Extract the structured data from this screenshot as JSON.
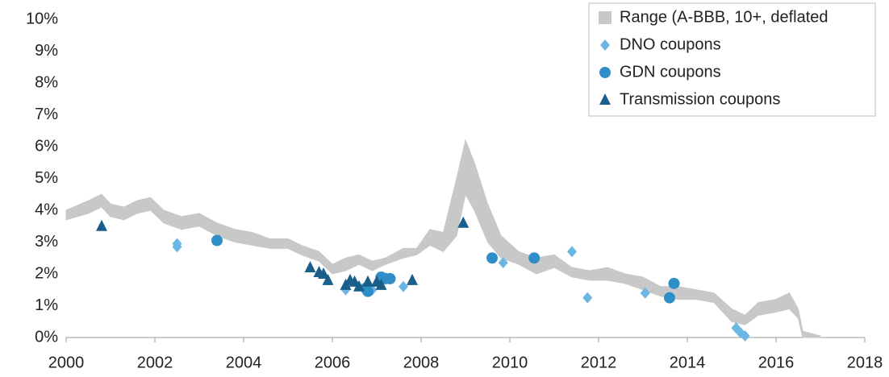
{
  "chart_data": {
    "type": "scatter",
    "xlim": [
      2000,
      2018
    ],
    "xticks": [
      2000,
      2002,
      2004,
      2006,
      2008,
      2010,
      2012,
      2014,
      2016,
      2018
    ],
    "ylim": [
      0,
      10
    ],
    "yticks": [
      {
        "value": 0,
        "label": "0%"
      },
      {
        "value": 1,
        "label": "1%"
      },
      {
        "value": 2,
        "label": "2%"
      },
      {
        "value": 3,
        "label": "3%"
      },
      {
        "value": 4,
        "label": "4%"
      },
      {
        "value": 5,
        "label": "5%"
      },
      {
        "value": 6,
        "label": "6%"
      },
      {
        "value": 7,
        "label": "7%"
      },
      {
        "value": 8,
        "label": "8%"
      },
      {
        "value": 9,
        "label": "9%"
      },
      {
        "value": 10,
        "label": "10%"
      }
    ],
    "legend": "top-right",
    "series": [
      {
        "name": "Range (A-BBB, 10+, deflated",
        "marker": "band",
        "color": "#c8c8c8",
        "x": [
          2000.0,
          2000.5,
          2000.8,
          2001.0,
          2001.3,
          2001.6,
          2001.9,
          2002.2,
          2002.6,
          2003.0,
          2003.4,
          2003.8,
          2004.2,
          2004.6,
          2005.0,
          2005.3,
          2005.7,
          2006.0,
          2006.3,
          2006.6,
          2006.9,
          2007.2,
          2007.6,
          2007.9,
          2008.2,
          2008.5,
          2008.8,
          2009.0,
          2009.2,
          2009.5,
          2009.8,
          2010.2,
          2010.6,
          2011.0,
          2011.4,
          2011.8,
          2012.2,
          2012.6,
          2013.0,
          2013.4,
          2013.8,
          2014.2,
          2014.6,
          2015.0,
          2015.3,
          2015.6,
          2016.0,
          2016.3,
          2016.5,
          2016.6,
          2017.0
        ],
        "low": [
          3.7,
          3.9,
          4.1,
          3.8,
          3.7,
          3.9,
          4.0,
          3.6,
          3.4,
          3.5,
          3.2,
          3.0,
          2.9,
          2.8,
          2.8,
          2.6,
          2.4,
          2.0,
          2.1,
          2.3,
          2.1,
          2.3,
          2.5,
          2.6,
          2.9,
          2.7,
          3.2,
          4.5,
          4.0,
          3.0,
          2.5,
          2.3,
          2.0,
          2.2,
          1.9,
          1.8,
          1.8,
          1.7,
          1.5,
          1.3,
          1.2,
          1.2,
          1.1,
          0.5,
          0.4,
          0.7,
          0.8,
          0.9,
          0.6,
          0.0,
          0.0
        ],
        "high": [
          4.0,
          4.3,
          4.5,
          4.2,
          4.1,
          4.3,
          4.4,
          4.0,
          3.8,
          3.9,
          3.6,
          3.4,
          3.3,
          3.1,
          3.1,
          2.9,
          2.7,
          2.3,
          2.5,
          2.6,
          2.4,
          2.5,
          2.8,
          2.8,
          3.4,
          3.3,
          5.0,
          6.2,
          5.5,
          4.2,
          3.2,
          2.7,
          2.5,
          2.6,
          2.2,
          2.1,
          2.2,
          2.0,
          1.9,
          1.6,
          1.6,
          1.5,
          1.4,
          0.9,
          0.7,
          1.1,
          1.2,
          1.4,
          0.9,
          0.2,
          0.05
        ]
      },
      {
        "name": "DNO coupons",
        "marker": "diamond",
        "color": "#6cb6e4",
        "x": [
          2002.5,
          2002.5,
          2006.3,
          2006.9,
          2007.1,
          2007.6,
          2009.85,
          2011.4,
          2011.75,
          2013.05,
          2015.1,
          2015.2,
          2015.3
        ],
        "values": [
          2.95,
          2.85,
          1.5,
          1.5,
          1.85,
          1.6,
          2.35,
          2.7,
          1.25,
          1.4,
          0.3,
          0.15,
          0.05
        ]
      },
      {
        "name": "GDN coupons",
        "marker": "circle",
        "color": "#2e8fc8",
        "x": [
          2003.4,
          2006.75,
          2006.8,
          2007.1,
          2007.2,
          2007.3,
          2009.6,
          2010.55,
          2013.6,
          2013.7
        ],
        "values": [
          3.05,
          1.55,
          1.45,
          1.9,
          1.85,
          1.85,
          2.5,
          2.5,
          1.25,
          1.7
        ]
      },
      {
        "name": "Transmission coupons",
        "marker": "triangle",
        "color": "#1a5f8a",
        "x": [
          2000.8,
          2005.5,
          2005.7,
          2005.8,
          2005.9,
          2006.3,
          2006.4,
          2006.5,
          2006.6,
          2006.8,
          2007.0,
          2007.1,
          2007.8,
          2008.95
        ],
        "values": [
          3.5,
          2.2,
          2.05,
          2.0,
          1.8,
          1.65,
          1.8,
          1.75,
          1.6,
          1.75,
          1.75,
          1.65,
          1.8,
          3.6
        ]
      }
    ]
  }
}
